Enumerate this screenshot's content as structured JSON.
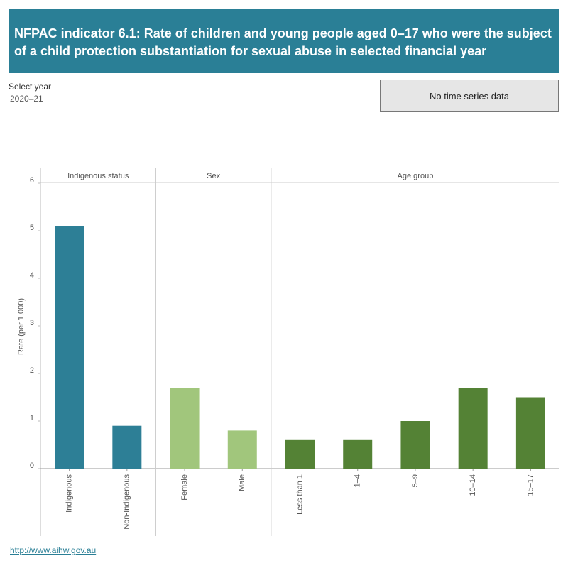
{
  "header": {
    "title": "NFPAC indicator 6.1: Rate of children and young people aged 0–17 who were the subject of a child protection substantiation for sexual abuse in selected financial year"
  },
  "controls": {
    "select_label": "Select year",
    "select_value": "2020–21",
    "button": "No time series data"
  },
  "chart_data": {
    "type": "bar",
    "y_label": "Rate (per 1,000)",
    "ylim": [
      0,
      6
    ],
    "yticks": [
      0,
      1,
      2,
      3,
      4,
      5,
      6
    ],
    "panels": [
      {
        "name": "Indigenous status",
        "color": "#2d7f96",
        "categories": [
          "Indigenous",
          "Non-Indigenous"
        ],
        "values": [
          5.1,
          0.9
        ]
      },
      {
        "name": "Sex",
        "color": "#a1c67c",
        "categories": [
          "Female",
          "Male"
        ],
        "values": [
          1.7,
          0.8
        ]
      },
      {
        "name": "Age group",
        "color": "#548235",
        "categories": [
          "Less than 1",
          "1–4",
          "5–9",
          "10–14",
          "15–17"
        ],
        "values": [
          0.6,
          0.6,
          1.0,
          1.7,
          1.5
        ]
      }
    ]
  },
  "footer": {
    "link": "http://www.aihw.gov.au"
  }
}
